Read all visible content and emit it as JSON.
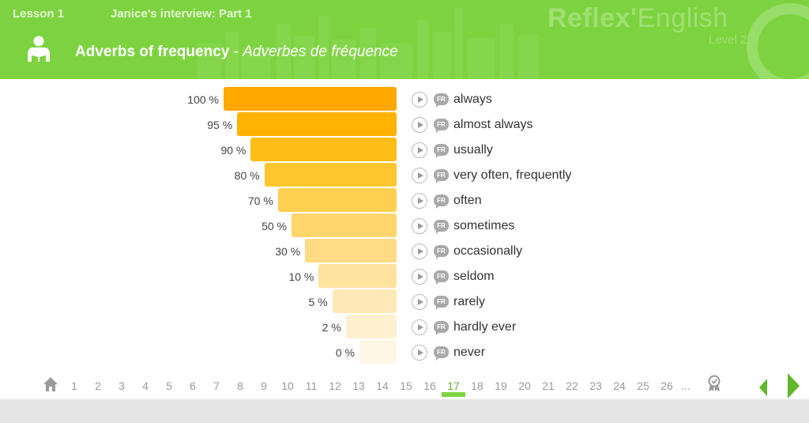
{
  "header": {
    "lesson": "Lesson 1",
    "interview": "Janice's interview: Part 1",
    "brand": "Reflex'",
    "brand_suffix": "English",
    "level": "Level 2",
    "title_en": "Adverbs of frequency",
    "title_sep": " - ",
    "title_fr": "Adverbes de fréquence",
    "color": "#7cd33f"
  },
  "rows": [
    {
      "percent": "100 %",
      "word": "always",
      "value": 100,
      "color": "#ffa800"
    },
    {
      "percent": "95 %",
      "word": "almost always",
      "value": 95,
      "color": "#ffb300"
    },
    {
      "percent": "90 %",
      "word": "usually",
      "value": 90,
      "color": "#ffbd17"
    },
    {
      "percent": "80 %",
      "word": "very often, frequently",
      "value": 80,
      "color": "#ffc62e"
    },
    {
      "percent": "70 %",
      "word": "often",
      "value": 70,
      "color": "#ffcf4f"
    },
    {
      "percent": "50 %",
      "word": "sometimes",
      "value": 50,
      "color": "#ffd56c"
    },
    {
      "percent": "30 %",
      "word": "occasionally",
      "value": 30,
      "color": "#ffdb85"
    },
    {
      "percent": "10 %",
      "word": "seldom",
      "value": 10,
      "color": "#ffe29e"
    },
    {
      "percent": "5 %",
      "word": "rarely",
      "value": 5,
      "color": "#ffe9b8"
    },
    {
      "percent": "2 %",
      "word": "hardly ever",
      "value": 2,
      "color": "#fff0d0"
    },
    {
      "percent": "0 %",
      "word": "never",
      "value": 0,
      "color": "#fff6e6"
    }
  ],
  "fr_label": "FR",
  "pagination": {
    "pages": [
      "1",
      "2",
      "3",
      "4",
      "5",
      "6",
      "7",
      "8",
      "9",
      "10",
      "11",
      "12",
      "13",
      "14",
      "15",
      "16",
      "17",
      "18",
      "19",
      "20",
      "21",
      "22",
      "23",
      "24",
      "25",
      "26"
    ],
    "current": "17",
    "ellipsis": "..."
  }
}
